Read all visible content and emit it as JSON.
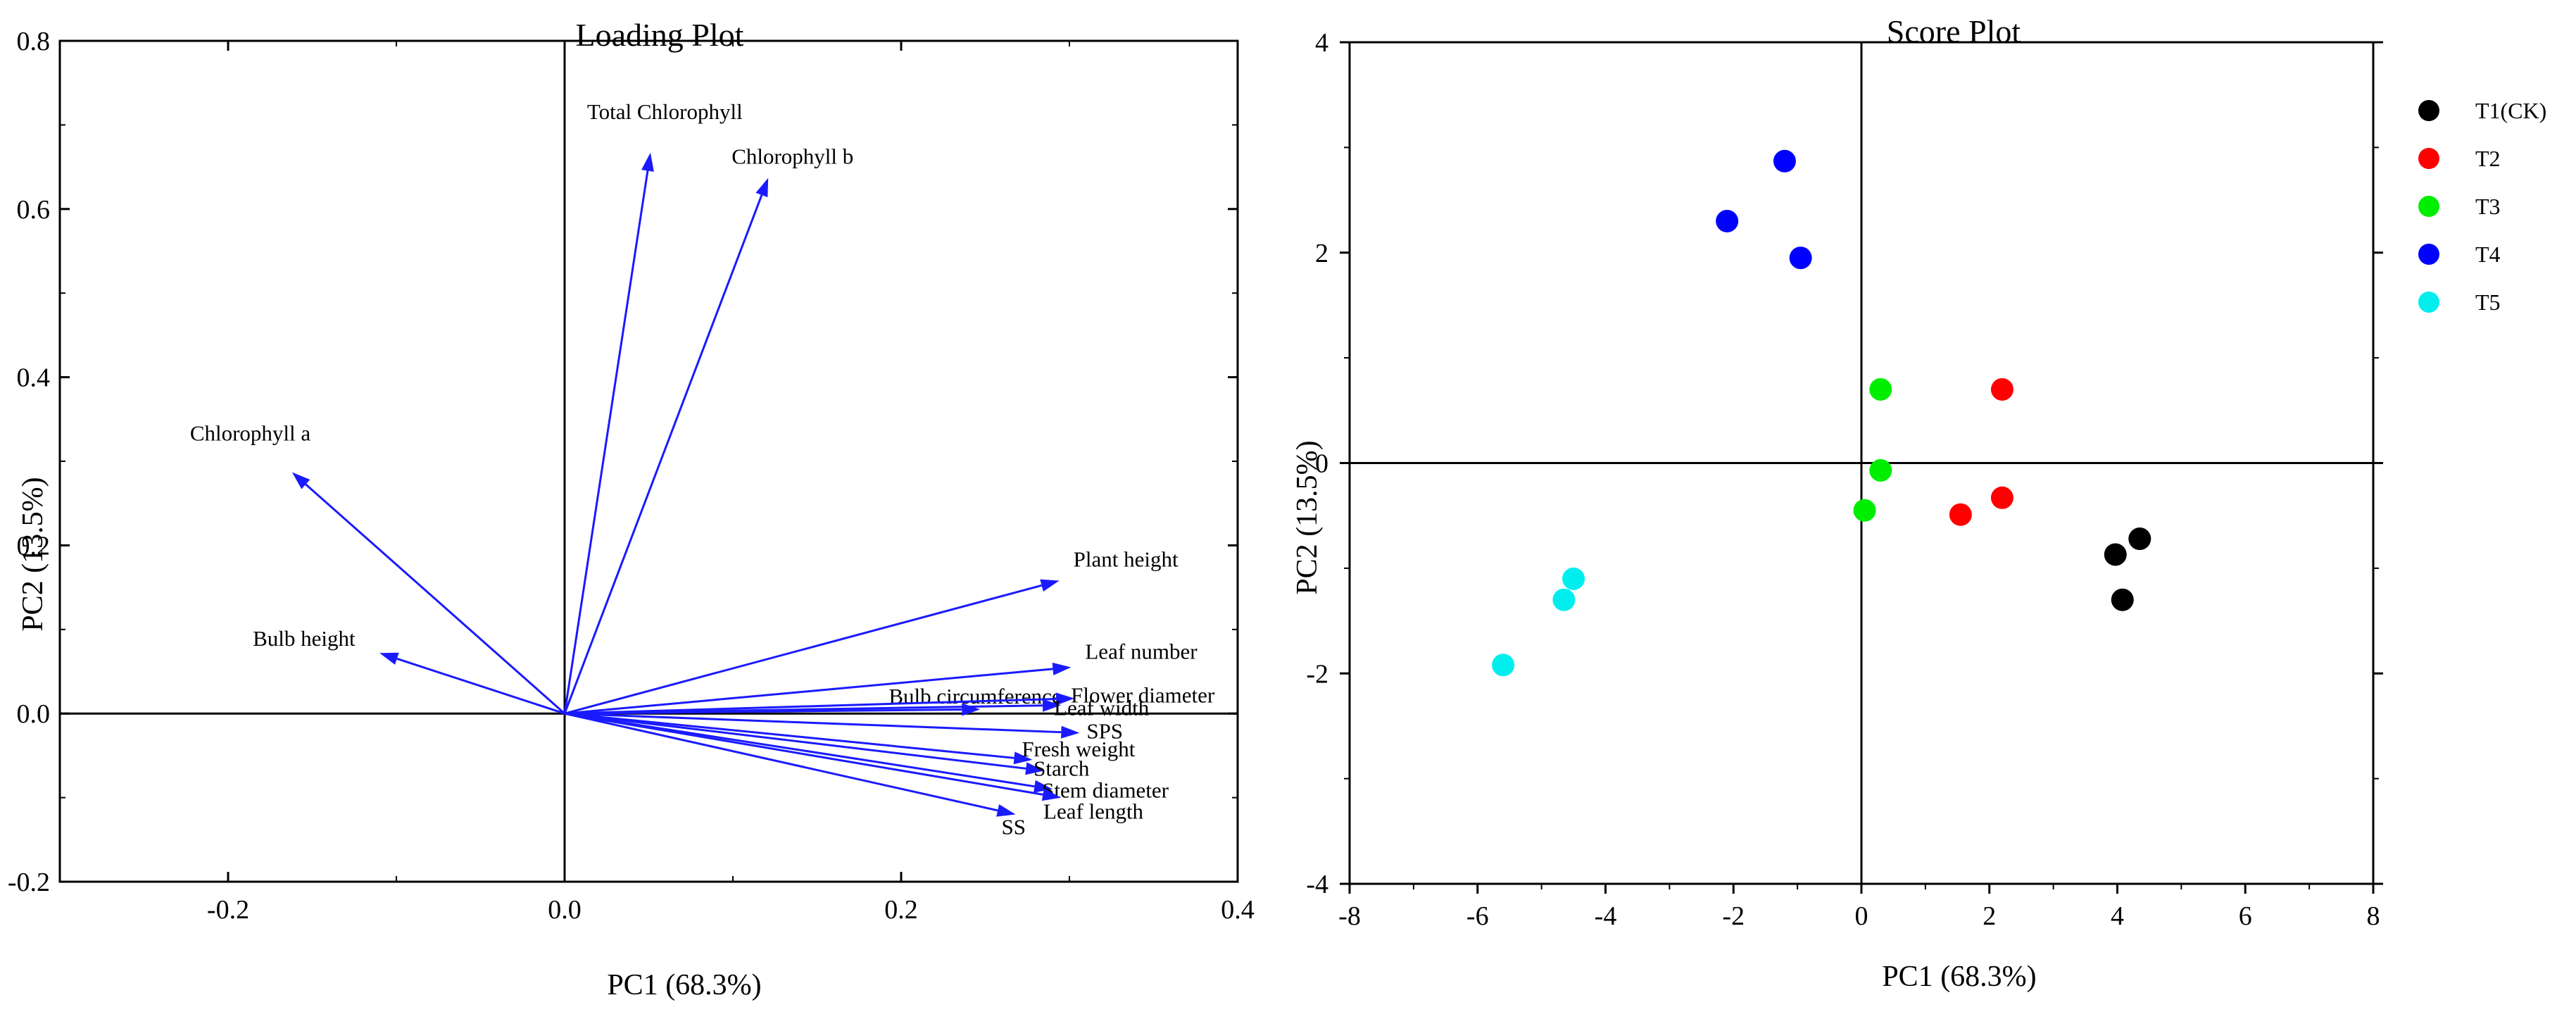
{
  "chart_data": [
    {
      "type": "loading_vectors",
      "title": "Loading Plot",
      "xlabel": "PC1 (68.3%)",
      "ylabel": "PC2 (13.5%)",
      "xlim": [
        -0.3,
        0.4
      ],
      "ylim": [
        -0.2,
        0.8
      ],
      "xticks": [
        -0.2,
        0.0,
        0.2,
        0.4
      ],
      "xtick_labels": [
        "-0.2",
        "0.0",
        "0.2",
        "0.4"
      ],
      "yticks": [
        -0.2,
        0.0,
        0.2,
        0.4,
        0.6,
        0.8
      ],
      "ytick_labels": [
        "-0.2",
        "0.0",
        "0.2",
        "0.4",
        "0.6",
        "0.8"
      ],
      "color": "#1a1aff",
      "vectors": [
        {
          "name": "Total Chlorophyll",
          "x": 0.051,
          "y": 0.667
        },
        {
          "name": "Chlorophyll b",
          "x": 0.121,
          "y": 0.637
        },
        {
          "name": "Chlorophyll a",
          "x": -0.162,
          "y": 0.287
        },
        {
          "name": "Bulb height",
          "x": -0.11,
          "y": 0.072
        },
        {
          "name": "Plant height",
          "x": 0.294,
          "y": 0.158
        },
        {
          "name": "Leaf number",
          "x": 0.301,
          "y": 0.055
        },
        {
          "name": "Bulb circumference",
          "x": 0.247,
          "y": 0.005
        },
        {
          "name": "Flower diameter",
          "x": 0.303,
          "y": 0.018
        },
        {
          "name": "Leaf width",
          "x": 0.295,
          "y": 0.01
        },
        {
          "name": "SPS",
          "x": 0.306,
          "y": -0.023
        },
        {
          "name": "Fresh weight",
          "x": 0.278,
          "y": -0.055
        },
        {
          "name": "Starch",
          "x": 0.285,
          "y": -0.068
        },
        {
          "name": "Stem diameter",
          "x": 0.29,
          "y": -0.09
        },
        {
          "name": "Leaf length",
          "x": 0.295,
          "y": -0.1
        },
        {
          "name": "SS",
          "x": 0.268,
          "y": -0.12
        }
      ]
    },
    {
      "type": "scatter",
      "title": "Score Plot",
      "xlabel": "PC1 (68.3%)",
      "ylabel": "PC2 (13.5%)",
      "xlim": [
        -8,
        8
      ],
      "ylim": [
        -4,
        4
      ],
      "xticks": [
        -8,
        -6,
        -4,
        -2,
        0,
        2,
        4,
        6,
        8
      ],
      "xtick_labels": [
        "-8",
        "-6",
        "-4",
        "-2",
        "0",
        "2",
        "4",
        "6",
        "8"
      ],
      "yticks": [
        -4,
        -2,
        0,
        2,
        4
      ],
      "ytick_labels": [
        "-4",
        "-2",
        "0",
        "2",
        "4"
      ],
      "legend_position": "right",
      "series": [
        {
          "name": "T1(CK)",
          "color": "#000000",
          "points": [
            [
              4.35,
              -0.72
            ],
            [
              3.97,
              -0.87
            ],
            [
              4.08,
              -1.3
            ]
          ]
        },
        {
          "name": "T2",
          "color": "#ff0000",
          "points": [
            [
              2.2,
              0.7
            ],
            [
              2.2,
              -0.33
            ],
            [
              1.55,
              -0.49
            ]
          ]
        },
        {
          "name": "T3",
          "color": "#00ee00",
          "points": [
            [
              0.3,
              0.7
            ],
            [
              0.3,
              -0.07
            ],
            [
              0.05,
              -0.45
            ]
          ]
        },
        {
          "name": "T4",
          "color": "#0000ff",
          "points": [
            [
              -1.2,
              2.87
            ],
            [
              -2.1,
              2.3
            ],
            [
              -0.95,
              1.95
            ]
          ]
        },
        {
          "name": "T5",
          "color": "#00eeee",
          "points": [
            [
              -4.5,
              -1.1
            ],
            [
              -4.65,
              -1.3
            ],
            [
              -5.6,
              -1.92
            ]
          ]
        }
      ]
    }
  ]
}
